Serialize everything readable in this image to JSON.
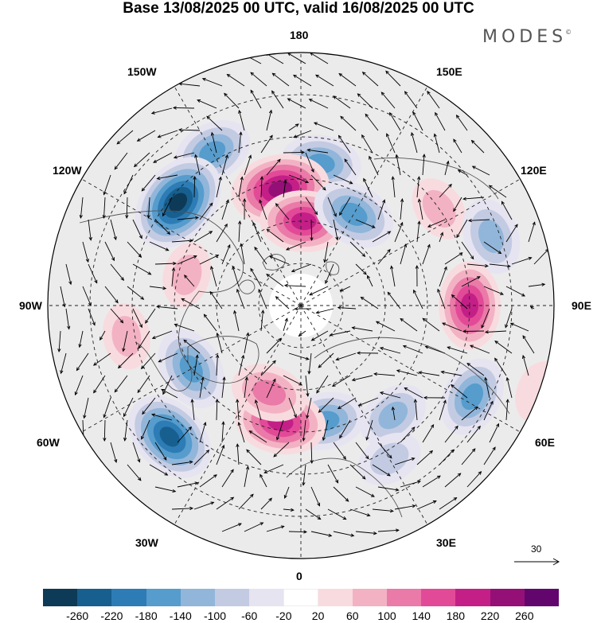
{
  "title": "Base 13/08/2025 00 UTC, valid 16/08/2025 00 UTC",
  "brand": "MODES",
  "brand_mark": "©",
  "longitude_labels": {
    "top": "180",
    "bottom": "0",
    "left": "90W",
    "right": "90E",
    "upper_left_1": "150W",
    "upper_left_2": "120W",
    "upper_right_1": "150E",
    "upper_right_2": "120E",
    "lower_left_1": "60W",
    "lower_left_2": "30W",
    "lower_right_1": "60E",
    "lower_right_2": "30E"
  },
  "reference_vector": {
    "label": "30"
  },
  "colorbar": {
    "colors": [
      "#0d3a57",
      "#175f8f",
      "#2d7cb5",
      "#569ccc",
      "#91b6da",
      "#c3cbe3",
      "#e6e4f0",
      "#ffffff",
      "#f8dbdf",
      "#f3b2c4",
      "#ea7aa7",
      "#e24a98",
      "#c41f87",
      "#951076",
      "#62066d"
    ],
    "ticks": [
      "-260",
      "-220",
      "-180",
      "-140",
      "-100",
      "-60",
      "-20",
      "20",
      "60",
      "100",
      "140",
      "180",
      "220",
      "260"
    ]
  },
  "anomaly_centers": [
    {
      "lon": -150,
      "lat": 48,
      "value": -140
    },
    {
      "lon": 172,
      "lat": 56,
      "value": -140
    },
    {
      "lon": -170,
      "lat": 62,
      "value": 240
    },
    {
      "lon": -130,
      "lat": 52,
      "value": -260
    },
    {
      "lon": 178,
      "lat": 70,
      "value": 180
    },
    {
      "lon": 150,
      "lat": 65,
      "value": -160
    },
    {
      "lon": 125,
      "lat": 50,
      "value": 60
    },
    {
      "lon": 110,
      "lat": 42,
      "value": -120
    },
    {
      "lon": 90,
      "lat": 50,
      "value": 180
    },
    {
      "lon": 62,
      "lat": 44,
      "value": -140
    },
    {
      "lon": 40,
      "lat": 56,
      "value": -100
    },
    {
      "lon": 12,
      "lat": 62,
      "value": -140
    },
    {
      "lon": -10,
      "lat": 62,
      "value": 200
    },
    {
      "lon": -45,
      "lat": 46,
      "value": -220
    },
    {
      "lon": -20,
      "lat": 68,
      "value": 120
    },
    {
      "lon": -60,
      "lat": 60,
      "value": -160
    },
    {
      "lon": -105,
      "lat": 62,
      "value": 60
    },
    {
      "lon": -80,
      "lat": 48,
      "value": 60
    },
    {
      "lon": 30,
      "lat": 48,
      "value": -60
    },
    {
      "lon": 70,
      "lat": 30,
      "value": 40
    }
  ]
}
